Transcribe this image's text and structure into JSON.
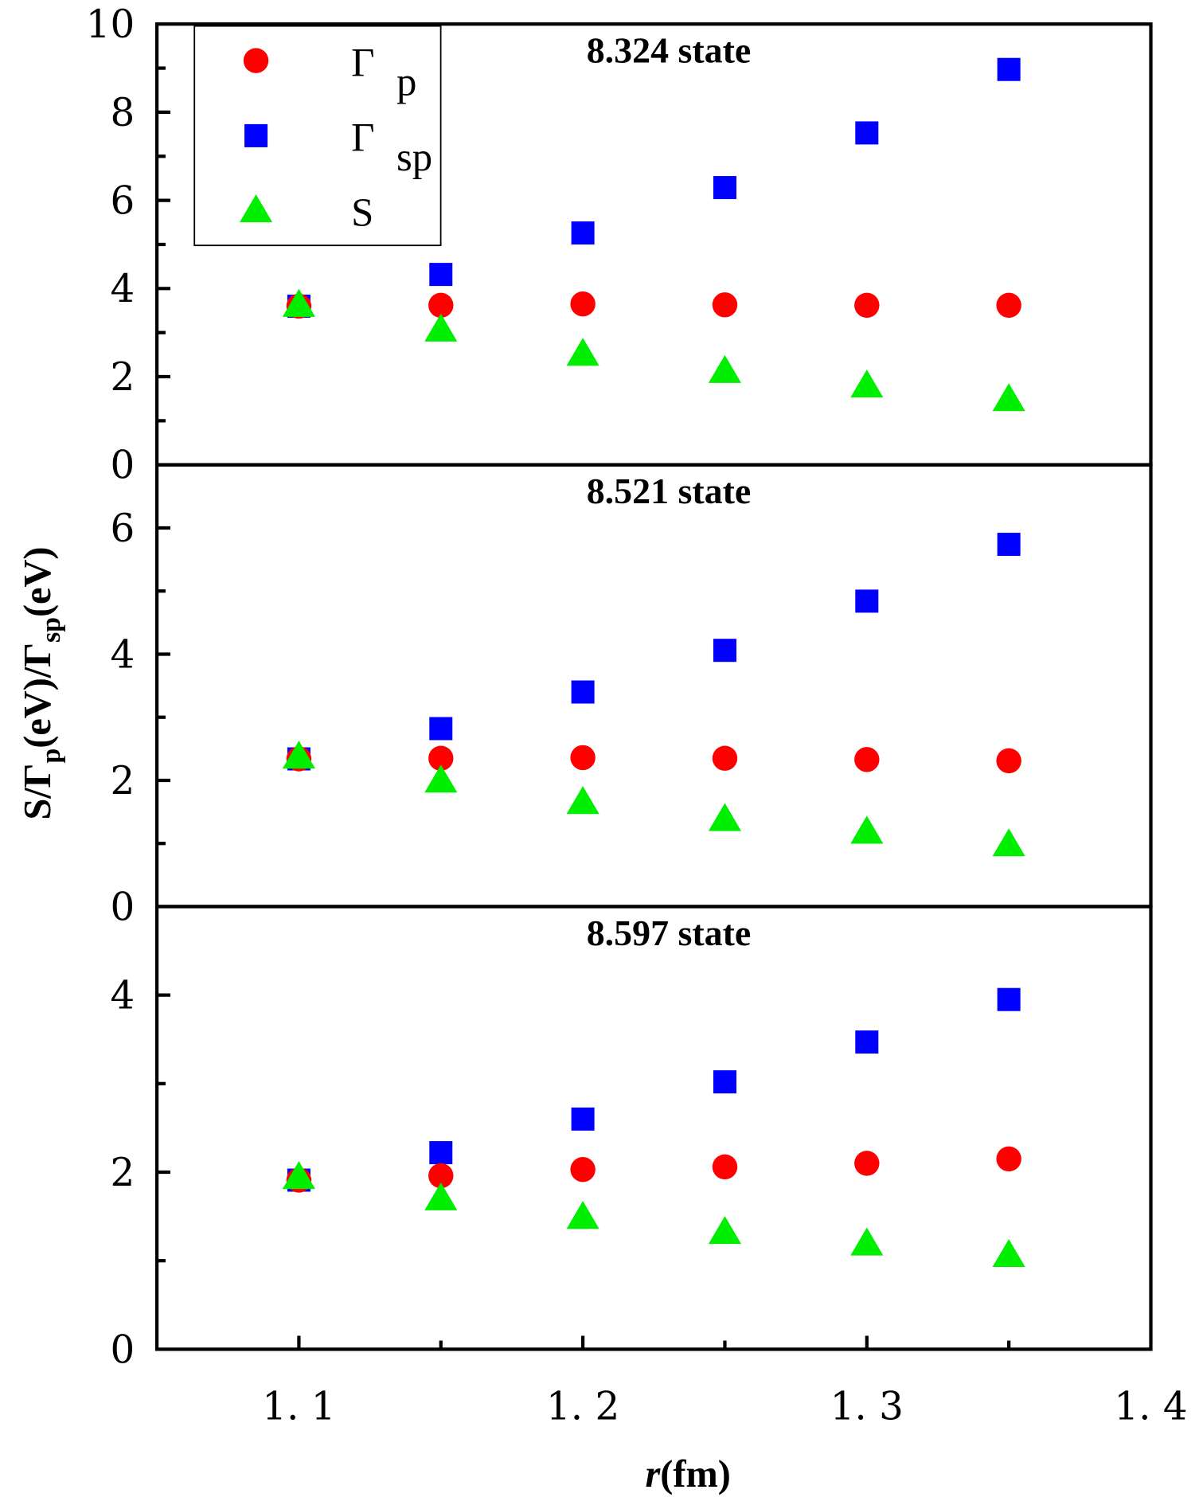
{
  "chart_data": {
    "type": "scatter",
    "xlabel_italic": "r",
    "xlabel_rest": "(fm)",
    "ylabel": "S/Γp(eV)/Γsp(eV)",
    "ylabel_parts": {
      "a": "S/Γ",
      "b": "p",
      "c": "(eV)/Γ",
      "d": "sp",
      "e": "(eV)"
    },
    "xlim": [
      1.05,
      1.4
    ],
    "x_ticks": [
      "1.1",
      "1.2",
      "1.3",
      "1.4"
    ],
    "x": [
      1.1,
      1.15,
      1.2,
      1.25,
      1.3,
      1.35
    ],
    "legend": {
      "placement": "top-left",
      "entries": [
        {
          "key": "gp",
          "symbol": "Γ",
          "sub": "p",
          "marker": "circle",
          "color": "#ff0000"
        },
        {
          "key": "gsp",
          "symbol": "Γ",
          "sub": "sp",
          "marker": "square",
          "color": "#0000ff"
        },
        {
          "key": "s",
          "symbol": "S",
          "sub": "",
          "marker": "triangle",
          "color": "#00ee00"
        }
      ]
    },
    "panels": [
      {
        "title": "8.324 state",
        "ylim": [
          0,
          10
        ],
        "y_ticks": [
          "0",
          "2",
          "4",
          "6",
          "8",
          "10"
        ],
        "series": {
          "gp": [
            3.6,
            3.62,
            3.65,
            3.63,
            3.62,
            3.62
          ],
          "gsp": [
            3.6,
            4.32,
            5.26,
            6.29,
            7.53,
            8.97
          ],
          "s": [
            3.62,
            3.06,
            2.51,
            2.12,
            1.79,
            1.48
          ]
        }
      },
      {
        "title": "8.521 state",
        "ylim": [
          0,
          7
        ],
        "y_ticks": [
          "0",
          "2",
          "4",
          "6"
        ],
        "series": {
          "gp": [
            2.34,
            2.35,
            2.36,
            2.35,
            2.33,
            2.31
          ],
          "gsp": [
            2.34,
            2.82,
            3.4,
            4.06,
            4.84,
            5.74
          ],
          "s": [
            2.37,
            1.99,
            1.65,
            1.38,
            1.18,
            0.98
          ]
        }
      },
      {
        "title": "8.597 state",
        "ylim": [
          0,
          5
        ],
        "y_ticks": [
          "0",
          "2",
          "4"
        ],
        "series": {
          "gp": [
            1.91,
            1.96,
            2.03,
            2.06,
            2.1,
            2.15
          ],
          "gsp": [
            1.91,
            2.22,
            2.6,
            3.02,
            3.47,
            3.95
          ],
          "s": [
            1.94,
            1.7,
            1.49,
            1.32,
            1.19,
            1.06
          ]
        }
      }
    ]
  }
}
